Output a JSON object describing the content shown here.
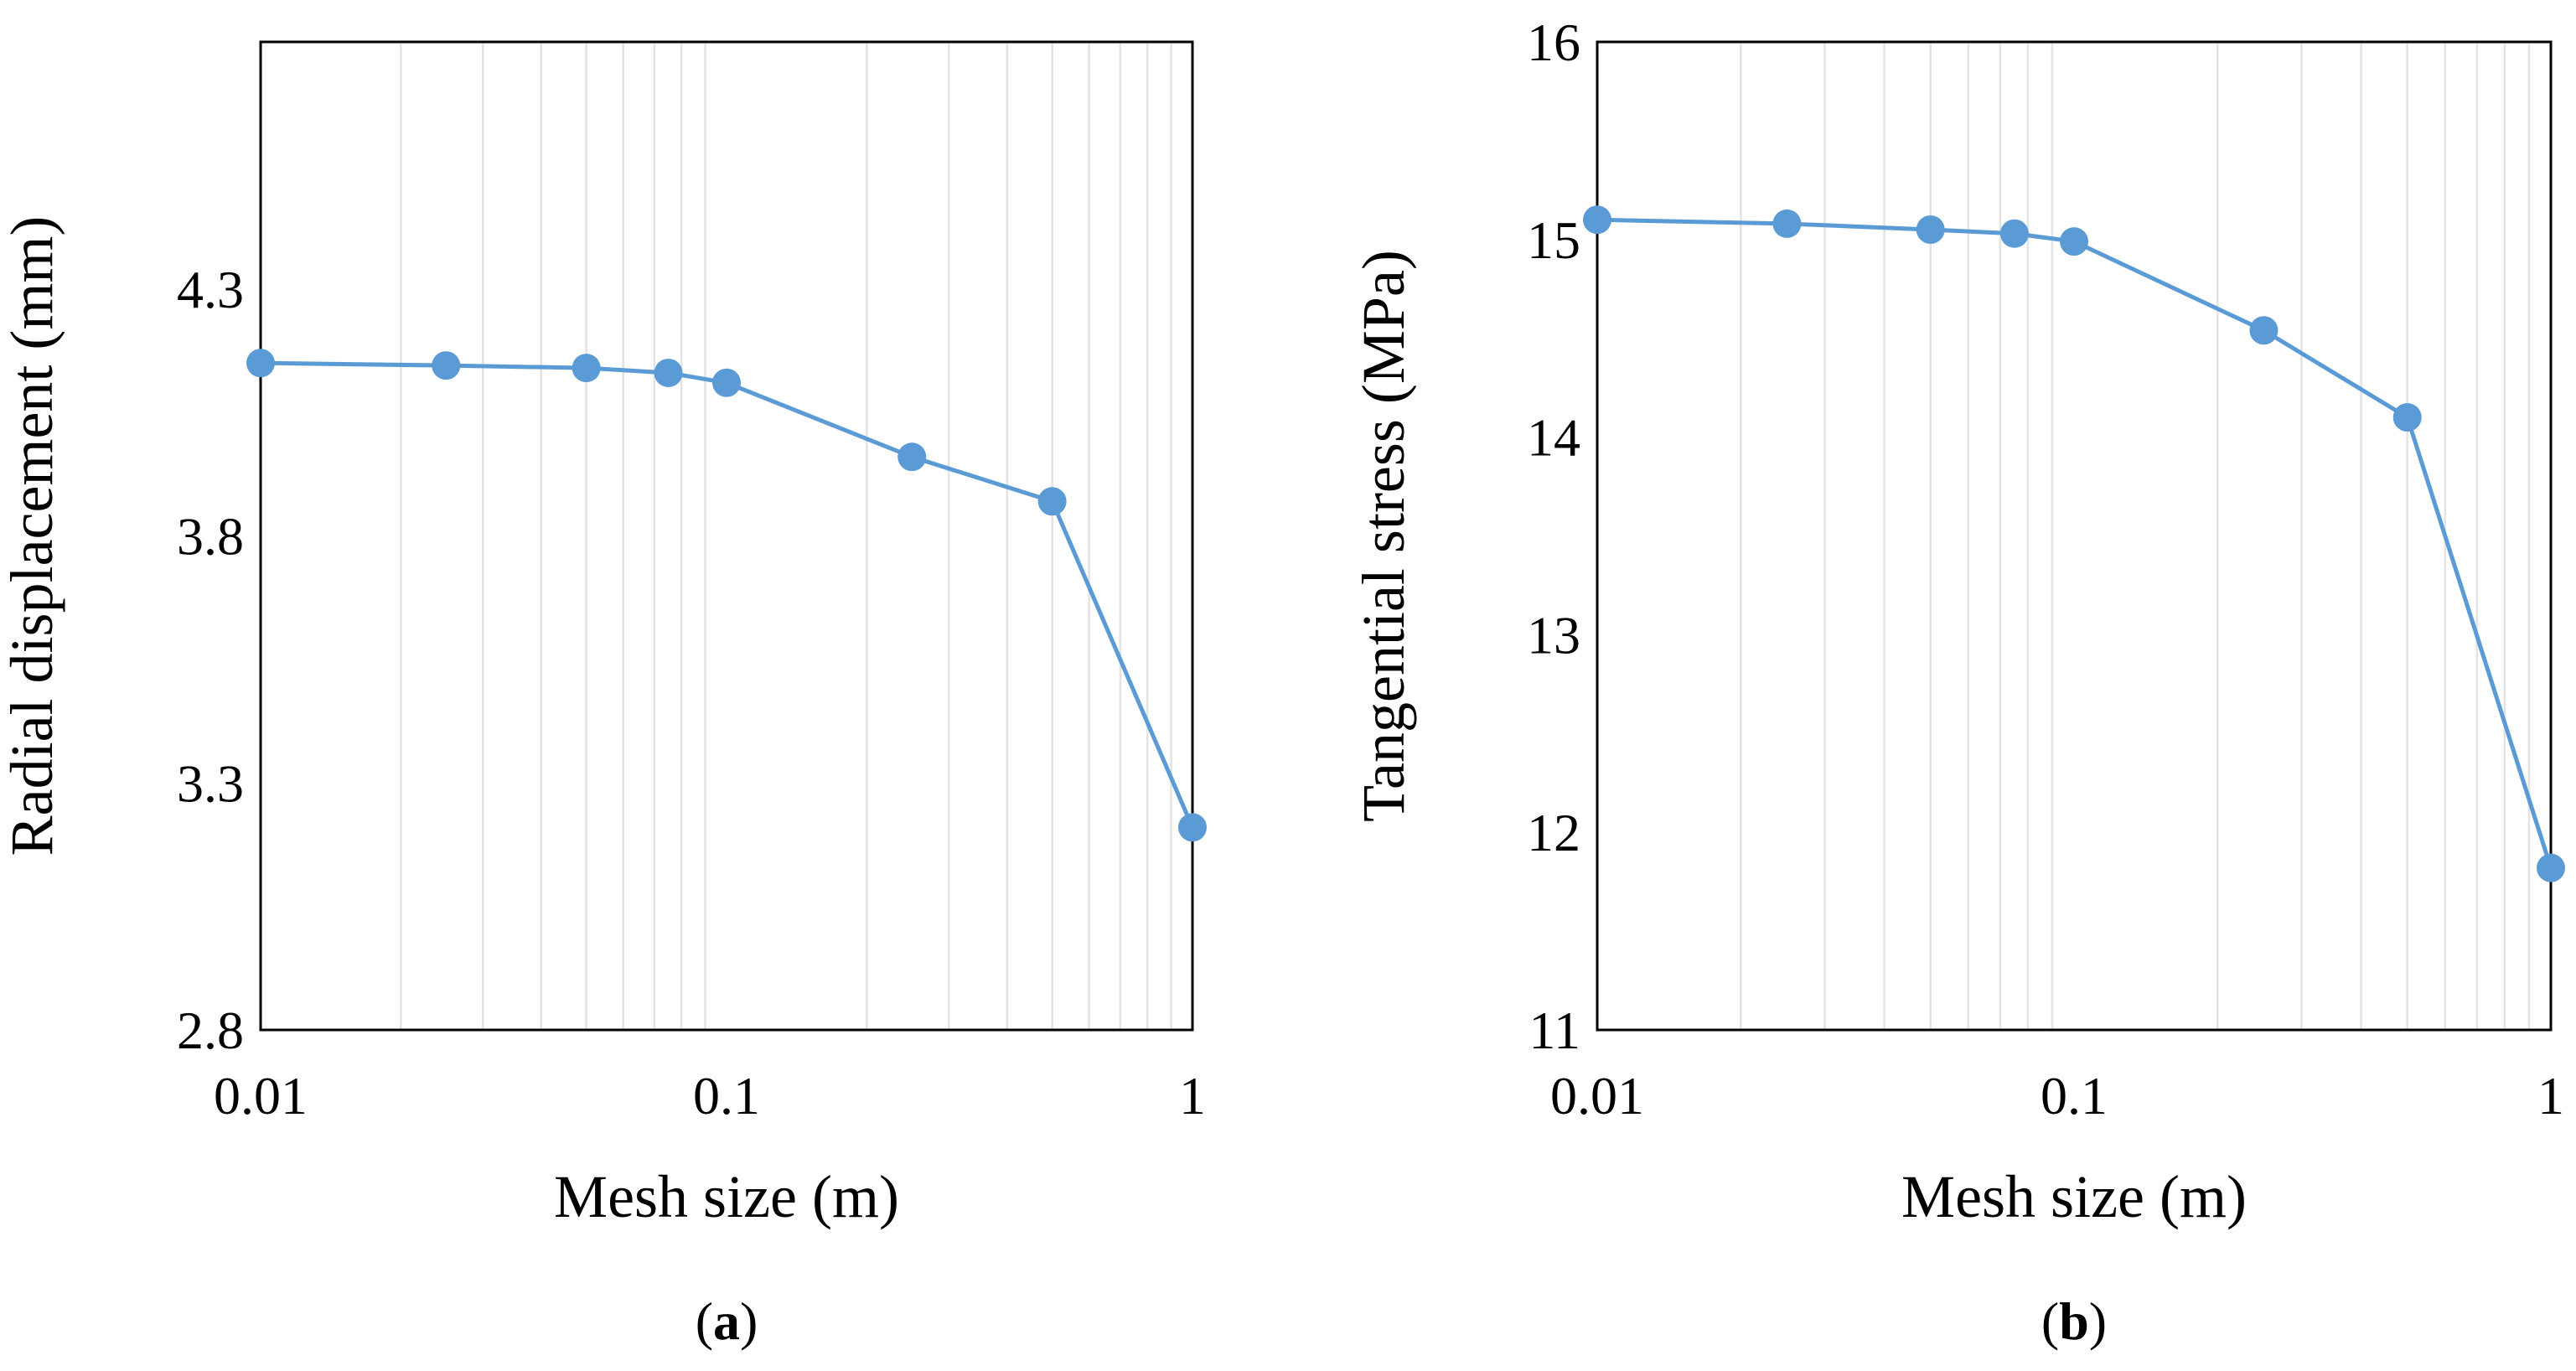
{
  "chart_data": [
    {
      "type": "line",
      "panel_label": "a",
      "title": "",
      "xlabel": "Mesh size (m)",
      "ylabel": "Radial displacement (mm)",
      "xscale": "log",
      "xlim": [
        0.01,
        1
      ],
      "ylim": [
        2.8,
        4.8
      ],
      "x_ticks": [
        0.01,
        0.1,
        1
      ],
      "x_tick_labels": [
        "0.01",
        "0.1",
        "1"
      ],
      "y_ticks": [
        2.8,
        3.3,
        3.8,
        4.3
      ],
      "y_tick_labels": [
        "2.8",
        "3.3",
        "3.8",
        "4.3"
      ],
      "grid": "vertical minor gridlines",
      "series": [
        {
          "name": "Radial displacement",
          "color": "#5b9bd5",
          "x": [
            0.01,
            0.025,
            0.05,
            0.075,
            0.1,
            0.25,
            0.5,
            1
          ],
          "y": [
            4.15,
            4.145,
            4.14,
            4.13,
            4.11,
            3.96,
            3.87,
            3.21
          ]
        }
      ]
    },
    {
      "type": "line",
      "panel_label": "b",
      "title": "",
      "xlabel": "Mesh size (m)",
      "ylabel": "Tangential stress (MPa)",
      "xscale": "log",
      "xlim": [
        0.01,
        1
      ],
      "ylim": [
        11,
        16
      ],
      "x_ticks": [
        0.01,
        0.1,
        1
      ],
      "x_tick_labels": [
        "0.01",
        "0.1",
        "1"
      ],
      "y_ticks": [
        11,
        12,
        13,
        14,
        15,
        16
      ],
      "y_tick_labels": [
        "11",
        "12",
        "13",
        "14",
        "15",
        "16"
      ],
      "grid": "vertical minor gridlines",
      "series": [
        {
          "name": "Tangential stress",
          "color": "#5b9bd5",
          "x": [
            0.01,
            0.025,
            0.05,
            0.075,
            0.1,
            0.25,
            0.5,
            1
          ],
          "y": [
            15.1,
            15.08,
            15.05,
            15.03,
            14.99,
            14.54,
            14.1,
            11.82
          ]
        }
      ]
    }
  ]
}
